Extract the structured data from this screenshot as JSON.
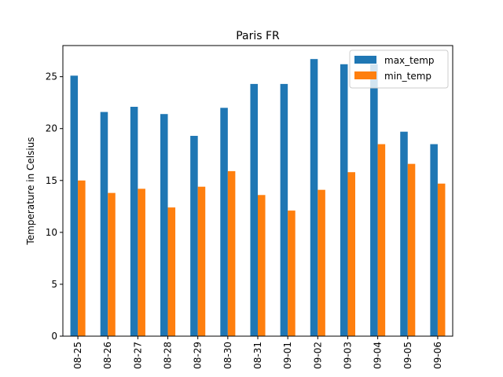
{
  "chart_data": {
    "type": "bar",
    "title": "Paris FR",
    "xlabel": "",
    "ylabel": "Temperature in Celsius",
    "ylim": [
      0,
      28
    ],
    "yticks": [
      0,
      5,
      10,
      15,
      20,
      25
    ],
    "categories": [
      "08-25",
      "08-26",
      "08-27",
      "08-28",
      "08-29",
      "08-30",
      "08-31",
      "09-01",
      "09-02",
      "09-03",
      "09-04",
      "09-05",
      "09-06"
    ],
    "series": [
      {
        "name": "max_temp",
        "color": "#1f77b4",
        "values": [
          25.1,
          21.6,
          22.1,
          21.4,
          19.3,
          22.0,
          24.3,
          24.3,
          26.7,
          26.2,
          26.2,
          19.7,
          18.5
        ]
      },
      {
        "name": "min_temp",
        "color": "#ff7f0e",
        "values": [
          15.0,
          13.8,
          14.2,
          12.4,
          14.4,
          15.9,
          13.6,
          12.1,
          14.1,
          15.8,
          18.5,
          16.6,
          14.7
        ]
      }
    ],
    "grid": false,
    "legend": "top-right"
  }
}
